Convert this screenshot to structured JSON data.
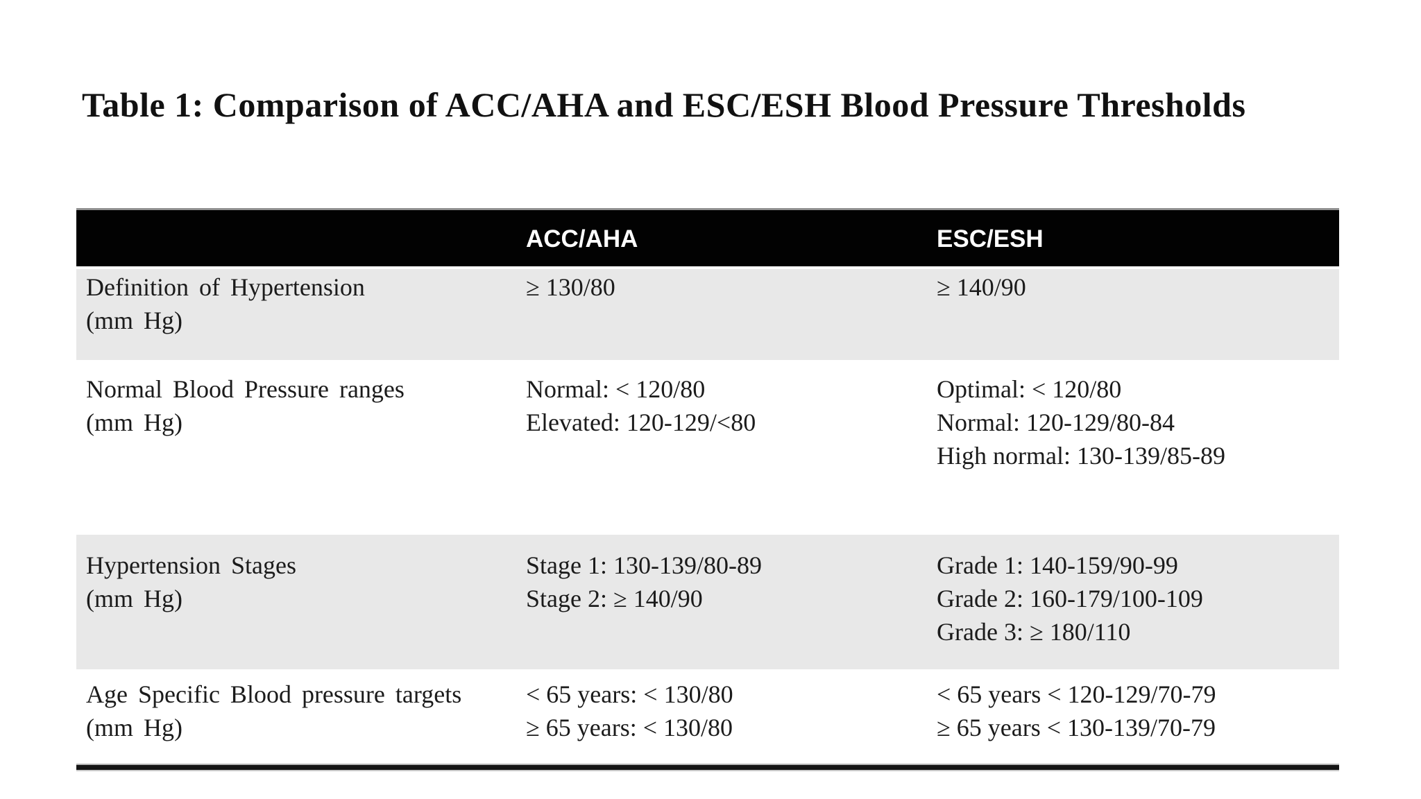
{
  "page_title": "Table 1: Comparison of ACC/AHA and ESC/ESH Blood Pressure Thresholds",
  "table": {
    "header": {
      "col1": "",
      "col2": "ACC/AHA",
      "col3": "ESC/ESH"
    },
    "rows": [
      {
        "label_lines": [
          "Definition of Hypertension",
          "(mm Hg)"
        ],
        "acc_aha_lines": [
          "≥ 130/80"
        ],
        "esc_esh_lines": [
          "≥ 140/90"
        ],
        "shaded": true
      },
      {
        "label_lines": [
          "Normal Blood Pressure ranges",
          "(mm Hg)"
        ],
        "acc_aha_lines": [
          "Normal: < 120/80",
          "Elevated: 120-129/<80"
        ],
        "esc_esh_lines": [
          "Optimal: < 120/80",
          "Normal: 120-129/80-84",
          "High normal: 130-139/85-89"
        ],
        "shaded": false
      },
      {
        "label_lines": [
          "Hypertension Stages",
          "(mm Hg)"
        ],
        "acc_aha_lines": [
          "Stage 1: 130-139/80-89",
          "Stage 2: ≥ 140/90"
        ],
        "esc_esh_lines": [
          "Grade 1: 140-159/90-99",
          "Grade 2: 160-179/100-109",
          "Grade 3: ≥ 180/110"
        ],
        "shaded": true
      },
      {
        "label_lines": [
          "Age Specific Blood pressure targets",
          "(mm Hg)"
        ],
        "acc_aha_lines": [
          "< 65 years: < 130/80",
          "≥ 65 years: < 130/80"
        ],
        "esc_esh_lines": [
          "< 65 years < 120-129/70-79",
          "≥ 65 years < 130-139/70-79"
        ],
        "shaded": false
      }
    ]
  },
  "colors": {
    "header_bg": "#020202",
    "header_text": "#ffffff",
    "shaded_row_bg": "#e8e8e8",
    "body_text": "#1b1b1b",
    "bottom_rule": "#141414"
  }
}
